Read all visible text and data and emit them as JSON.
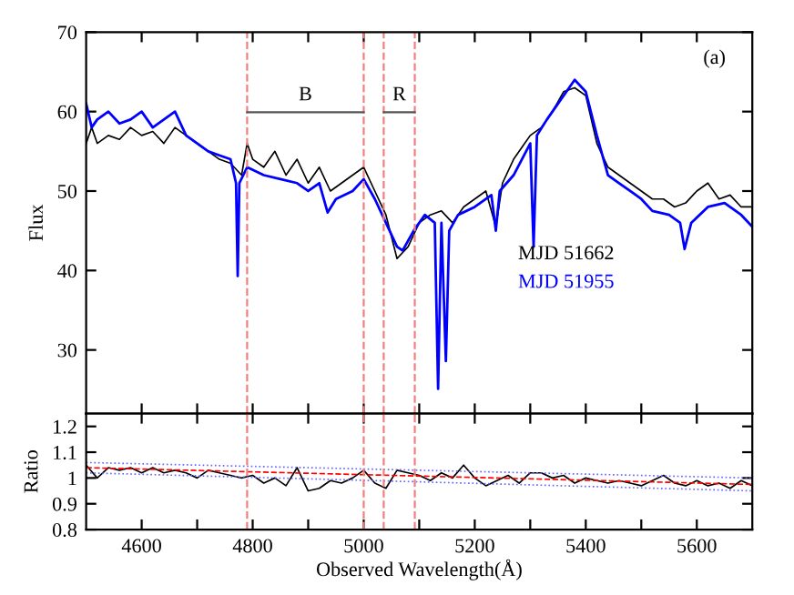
{
  "chart_data": [
    {
      "type": "line",
      "ylabel": "Flux",
      "xlim": [
        4500,
        5700
      ],
      "ylim": [
        22,
        70
      ],
      "yticks": [
        30,
        40,
        50,
        60,
        70
      ],
      "xticks": [
        4600,
        {
          "value": 4700,
          "label": null
        },
        4800,
        {
          "value": 4900,
          "label": null
        },
        5000,
        {
          "value": 5100,
          "label": null
        },
        5200,
        {
          "value": 5300,
          "label": null
        },
        5400,
        {
          "value": 5500,
          "label": null
        },
        5600
      ],
      "tick_labels": "y",
      "legend": "right",
      "grid": false,
      "series": [
        {
          "name": "MJD 51662",
          "color": "#000000",
          "x": [
            4500,
            4510,
            4520,
            4540,
            4560,
            4580,
            4600,
            4620,
            4640,
            4660,
            4680,
            4700,
            4720,
            4740,
            4760,
            4780,
            4790,
            4800,
            4820,
            4840,
            4860,
            4880,
            4900,
            4920,
            4940,
            4960,
            4980,
            5000,
            5020,
            5040,
            5060,
            5080,
            5100,
            5120,
            5140,
            5160,
            5180,
            5200,
            5220,
            5238,
            5250,
            5270,
            5290,
            5300,
            5320,
            5340,
            5360,
            5380,
            5400,
            5420,
            5440,
            5460,
            5480,
            5500,
            5520,
            5540,
            5560,
            5580,
            5600,
            5620,
            5640,
            5660,
            5680,
            5700
          ],
          "values": [
            56,
            58,
            56,
            57,
            56.5,
            58,
            57,
            57.5,
            56,
            58,
            57,
            56,
            55,
            54,
            53.5,
            52,
            56,
            54,
            53,
            55,
            52,
            54,
            51,
            53,
            50,
            51,
            52,
            53,
            50,
            47,
            41.5,
            43,
            46,
            47,
            47.5,
            46,
            48,
            49,
            50,
            45.5,
            51,
            54,
            56,
            57,
            58,
            60,
            62.5,
            63,
            62,
            56,
            53,
            52,
            51,
            50,
            49,
            49,
            48,
            48.5,
            50,
            51,
            49,
            49.5,
            48,
            48
          ]
        },
        {
          "name": "MJD 51955",
          "color": "#0000ff",
          "x": [
            4500,
            4510,
            4520,
            4540,
            4560,
            4580,
            4600,
            4620,
            4640,
            4660,
            4680,
            4700,
            4720,
            4740,
            4760,
            4770,
            4773,
            4776,
            4790,
            4820,
            4850,
            4880,
            4900,
            4920,
            4935,
            4950,
            4980,
            5000,
            5020,
            5040,
            5060,
            5070,
            5090,
            5110,
            5128,
            5134,
            5140,
            5148,
            5154,
            5170,
            5200,
            5230,
            5238,
            5245,
            5270,
            5300,
            5306,
            5312,
            5330,
            5350,
            5370,
            5380,
            5400,
            5420,
            5440,
            5460,
            5480,
            5500,
            5520,
            5550,
            5570,
            5578,
            5590,
            5620,
            5650,
            5680,
            5700
          ],
          "values": [
            61,
            58,
            59,
            60,
            58.5,
            59,
            60,
            58,
            59,
            60,
            57,
            56,
            55,
            54.5,
            54,
            51,
            39.3,
            51,
            53,
            52,
            51.5,
            51,
            50,
            51,
            47.3,
            49,
            50,
            51.5,
            49,
            46,
            43,
            42.5,
            45,
            47,
            46,
            25.1,
            46,
            28.6,
            45,
            47,
            48,
            49.5,
            45,
            50,
            52,
            56,
            43,
            57,
            59,
            61,
            63,
            64,
            62.5,
            57,
            52,
            51,
            50,
            49,
            47.5,
            47,
            46,
            42.7,
            46,
            48,
            48.5,
            47,
            45.5
          ]
        }
      ],
      "ref_lines": [
        {
          "axis": "x",
          "value": 4790,
          "color": "#f08080",
          "line_style": "dashed"
        },
        {
          "axis": "x",
          "value": 5000,
          "color": "#f08080",
          "line_style": "dashed"
        },
        {
          "axis": "x",
          "value": 5036,
          "color": "#f08080",
          "line_style": "dashed"
        },
        {
          "axis": "x",
          "value": 5092,
          "color": "#f08080",
          "line_style": "dashed"
        }
      ],
      "annotations": [
        "(a)",
        "B",
        "R"
      ]
    },
    {
      "type": "line",
      "ylabel": "Ratio",
      "xlabel": "Observed Wavelength(Å)",
      "xlim": [
        4500,
        5700
      ],
      "ylim": [
        0.8,
        1.25
      ],
      "yticks": [
        0.8,
        0.9,
        1,
        1.1,
        1.2
      ],
      "xticks": [
        4600,
        {
          "value": 4700,
          "label": null
        },
        4800,
        {
          "value": 4900,
          "label": null
        },
        5000,
        {
          "value": 5100,
          "label": null
        },
        5200,
        {
          "value": 5300,
          "label": null
        },
        5400,
        {
          "value": 5500,
          "label": null
        },
        5600
      ],
      "grid": false,
      "series": [
        {
          "color": "#000000",
          "line_style": "solid",
          "x": [
            4500,
            4520,
            4540,
            4560,
            4580,
            4600,
            4620,
            4640,
            4660,
            4680,
            4700,
            4720,
            4740,
            4760,
            4780,
            4800,
            4820,
            4840,
            4860,
            4880,
            4900,
            4920,
            4940,
            4960,
            4980,
            5000,
            5020,
            5040,
            5060,
            5080,
            5100,
            5120,
            5140,
            5160,
            5180,
            5200,
            5220,
            5240,
            5260,
            5280,
            5300,
            5320,
            5340,
            5360,
            5380,
            5400,
            5420,
            5440,
            5460,
            5480,
            5500,
            5520,
            5540,
            5560,
            5580,
            5600,
            5620,
            5640,
            5660,
            5680,
            5700
          ],
          "values": [
            1.05,
            1.0,
            1.04,
            1.03,
            1.04,
            1.02,
            1.04,
            1.02,
            1.03,
            1.02,
            1.0,
            1.03,
            1.02,
            1.01,
            1.0,
            1.01,
            0.98,
            1.0,
            0.97,
            1.04,
            0.95,
            0.96,
            0.99,
            0.98,
            1.0,
            1.03,
            0.98,
            0.96,
            1.03,
            1.02,
            1.01,
            0.99,
            1.02,
            1.0,
            1.05,
            1.0,
            0.97,
            0.99,
            1.01,
            0.98,
            1.02,
            1.02,
            1.0,
            1.01,
            0.98,
            1.0,
            0.99,
            0.98,
            0.99,
            0.98,
            0.97,
            0.99,
            1.01,
            0.98,
            0.97,
            0.99,
            0.97,
            0.98,
            0.96,
            0.99,
            0.97
          ]
        },
        {
          "color": "#ff0000",
          "line_style": "dashed",
          "x": [
            4500,
            5700
          ],
          "values": [
            1.04,
            0.975
          ]
        },
        {
          "color": "#6666ff",
          "line_style": "dotted",
          "x": [
            4500,
            5700
          ],
          "values": [
            1.06,
            1.0
          ]
        },
        {
          "color": "#6666ff",
          "line_style": "dotted",
          "x": [
            4500,
            5700
          ],
          "values": [
            1.02,
            0.95
          ]
        }
      ],
      "ref_lines": [
        {
          "axis": "x",
          "value": 4790,
          "color": "#f08080",
          "line_style": "dashed"
        },
        {
          "axis": "x",
          "value": 5000,
          "color": "#f08080",
          "line_style": "dashed"
        },
        {
          "axis": "x",
          "value": 5036,
          "color": "#f08080",
          "line_style": "dashed"
        },
        {
          "axis": "x",
          "value": 5092,
          "color": "#f08080",
          "line_style": "dashed"
        }
      ]
    }
  ]
}
